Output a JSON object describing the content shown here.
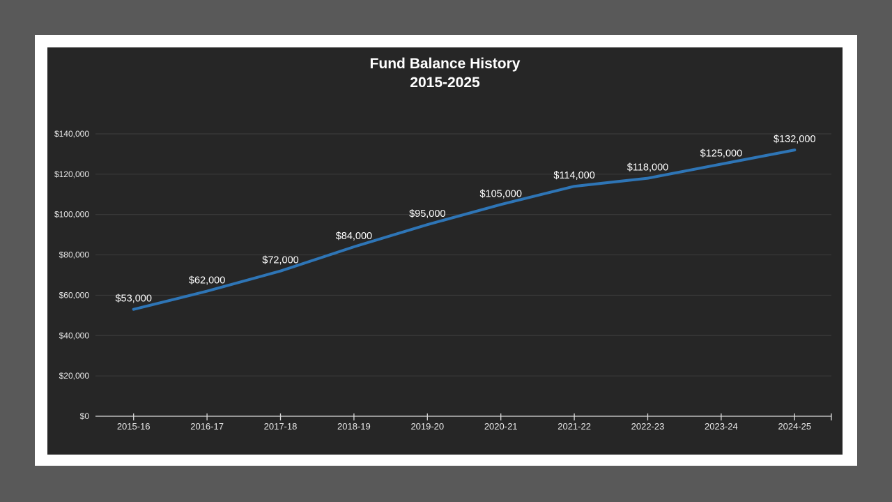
{
  "window": {
    "background": "#595959"
  },
  "slide": {
    "background": "#FFFFFF"
  },
  "chart_data": {
    "type": "line",
    "title": "Fund Balance History",
    "subtitle": "2015-2025",
    "categories": [
      "2015-16",
      "2016-17",
      "2017-18",
      "2018-19",
      "2019-20",
      "2020-21",
      "2021-22",
      "2022-23",
      "2023-24",
      "2024-25"
    ],
    "values": [
      53000,
      62000,
      72000,
      84000,
      95000,
      105000,
      114000,
      118000,
      125000,
      132000
    ],
    "data_labels": [
      "$53,000",
      "$62,000",
      "$72,000",
      "$84,000",
      "$95,000",
      "$105,000",
      "$114,000",
      "$118,000",
      "$125,000",
      "$132,000"
    ],
    "y_tick_values": [
      0,
      20000,
      40000,
      60000,
      80000,
      100000,
      120000,
      140000
    ],
    "y_tick_labels": [
      "$0",
      "$20,000",
      "$40,000",
      "$60,000",
      "$80,000",
      "$100,000",
      "$120,000",
      "$140,000"
    ],
    "ylim": [
      0,
      140000
    ],
    "xlabel": "",
    "ylabel": "",
    "legend": "none",
    "grid": "horizontal",
    "colors": {
      "plot_background": "#262626",
      "line": "#2E75B6",
      "gridline": "#3E3E3E",
      "axis": "#D9D9D9",
      "title_text": "#FFFFFF",
      "data_label_text": "#FFFFFF",
      "tick_label_text": "#E8E8E8"
    }
  }
}
